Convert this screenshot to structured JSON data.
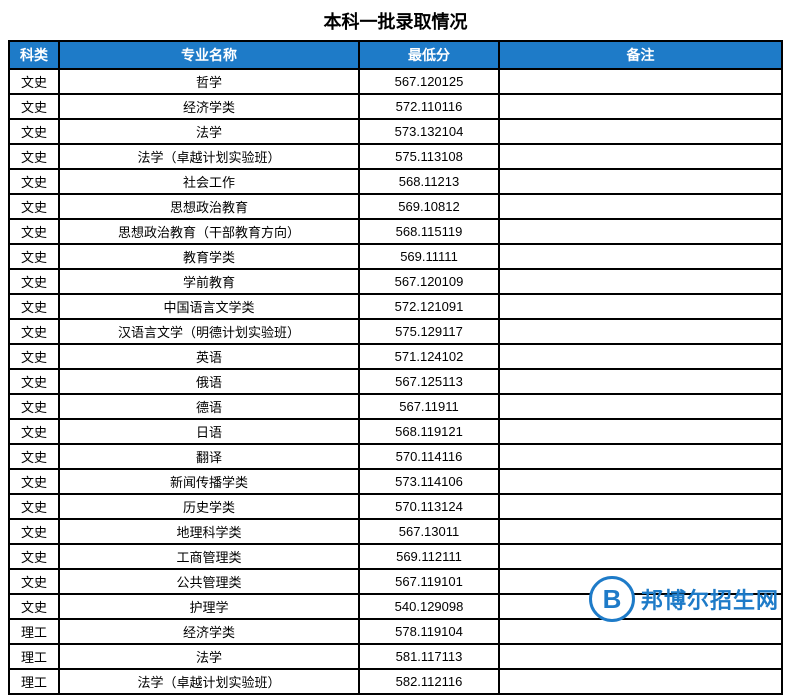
{
  "title": "本科一批录取情况",
  "table": {
    "header_bg": "#1e7bc8",
    "header_fg": "#ffffff",
    "border_color": "#000000",
    "columns": [
      "科类",
      "专业名称",
      "最低分",
      "备注"
    ],
    "rows": [
      [
        "文史",
        "哲学",
        "567.120125",
        ""
      ],
      [
        "文史",
        "经济学类",
        "572.110116",
        ""
      ],
      [
        "文史",
        "法学",
        "573.132104",
        ""
      ],
      [
        "文史",
        "法学（卓越计划实验班）",
        "575.113108",
        ""
      ],
      [
        "文史",
        "社会工作",
        "568.11213",
        ""
      ],
      [
        "文史",
        "思想政治教育",
        "569.10812",
        ""
      ],
      [
        "文史",
        "思想政治教育（干部教育方向）",
        "568.115119",
        ""
      ],
      [
        "文史",
        "教育学类",
        "569.11111",
        ""
      ],
      [
        "文史",
        "学前教育",
        "567.120109",
        ""
      ],
      [
        "文史",
        "中国语言文学类",
        "572.121091",
        ""
      ],
      [
        "文史",
        "汉语言文学（明德计划实验班）",
        "575.129117",
        ""
      ],
      [
        "文史",
        "英语",
        "571.124102",
        ""
      ],
      [
        "文史",
        "俄语",
        "567.125113",
        ""
      ],
      [
        "文史",
        "德语",
        "567.11911",
        ""
      ],
      [
        "文史",
        "日语",
        "568.119121",
        ""
      ],
      [
        "文史",
        "翻译",
        "570.114116",
        ""
      ],
      [
        "文史",
        "新闻传播学类",
        "573.114106",
        ""
      ],
      [
        "文史",
        "历史学类",
        "570.113124",
        ""
      ],
      [
        "文史",
        "地理科学类",
        "567.13011",
        ""
      ],
      [
        "文史",
        "工商管理类",
        "569.112111",
        ""
      ],
      [
        "文史",
        "公共管理类",
        "567.119101",
        ""
      ],
      [
        "文史",
        "护理学",
        "540.129098",
        ""
      ],
      [
        "理工",
        "经济学类",
        "578.119104",
        ""
      ],
      [
        "理工",
        "法学",
        "581.117113",
        ""
      ],
      [
        "理工",
        "法学（卓越计划实验班）",
        "582.112116",
        ""
      ]
    ]
  },
  "watermark": {
    "logo_letter": "B",
    "text": "邦博尔招生网",
    "color": "#1e7bc8"
  }
}
